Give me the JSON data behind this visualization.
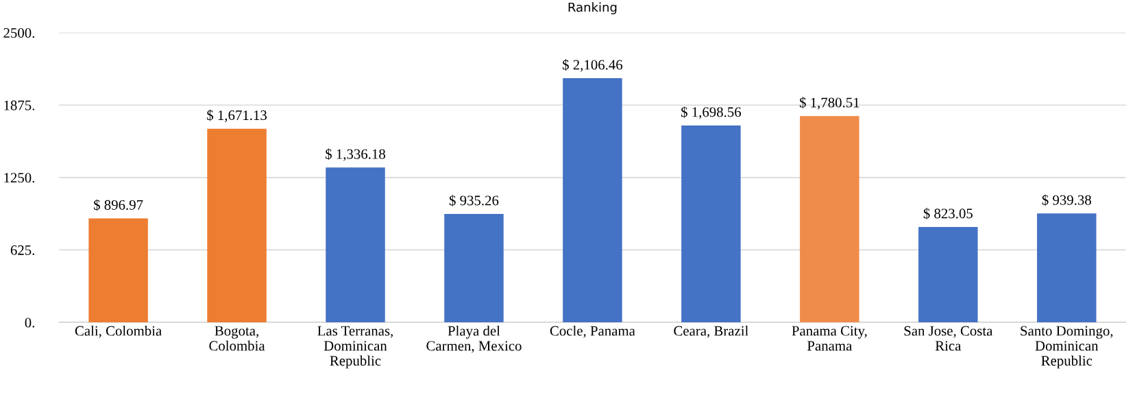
{
  "chart_data": {
    "type": "bar",
    "title": "Ranking",
    "categories": [
      "Cali, Colombia",
      "Bogota,\nColombia",
      "Las Terranas,\nDominican\nRepublic",
      "Playa del\nCarmen, Mexico",
      "Cocle, Panama",
      "Ceara, Brazil",
      "Panama City,\nPanama",
      "San Jose, Costa\nRica",
      "Santo Domingo,\nDominican\nRepublic"
    ],
    "values": [
      896.97,
      1671.13,
      1336.18,
      935.26,
      2106.46,
      1698.56,
      1780.51,
      823.05,
      939.38
    ],
    "value_labels": [
      "$ 896.97",
      "$ 1,671.13",
      "$ 1,336.18",
      "$ 935.26",
      "$ 2,106.46",
      "$ 1,698.56",
      "$ 1,780.51",
      "$ 823.05",
      "$ 939.38"
    ],
    "colors": [
      "#ed7d31",
      "#ed7d31",
      "#4472c4",
      "#4472c4",
      "#4472c4",
      "#4472c4",
      "#ef8c4b",
      "#4472c4",
      "#4472c4"
    ],
    "ylim": [
      0,
      2500
    ],
    "yticks": [
      {
        "value": 0,
        "label": "0."
      },
      {
        "value": 625,
        "label": "625."
      },
      {
        "value": 1250,
        "label": "1250."
      },
      {
        "value": 1875,
        "label": "1875."
      },
      {
        "value": 2500,
        "label": "2500."
      }
    ],
    "grid": "y"
  }
}
